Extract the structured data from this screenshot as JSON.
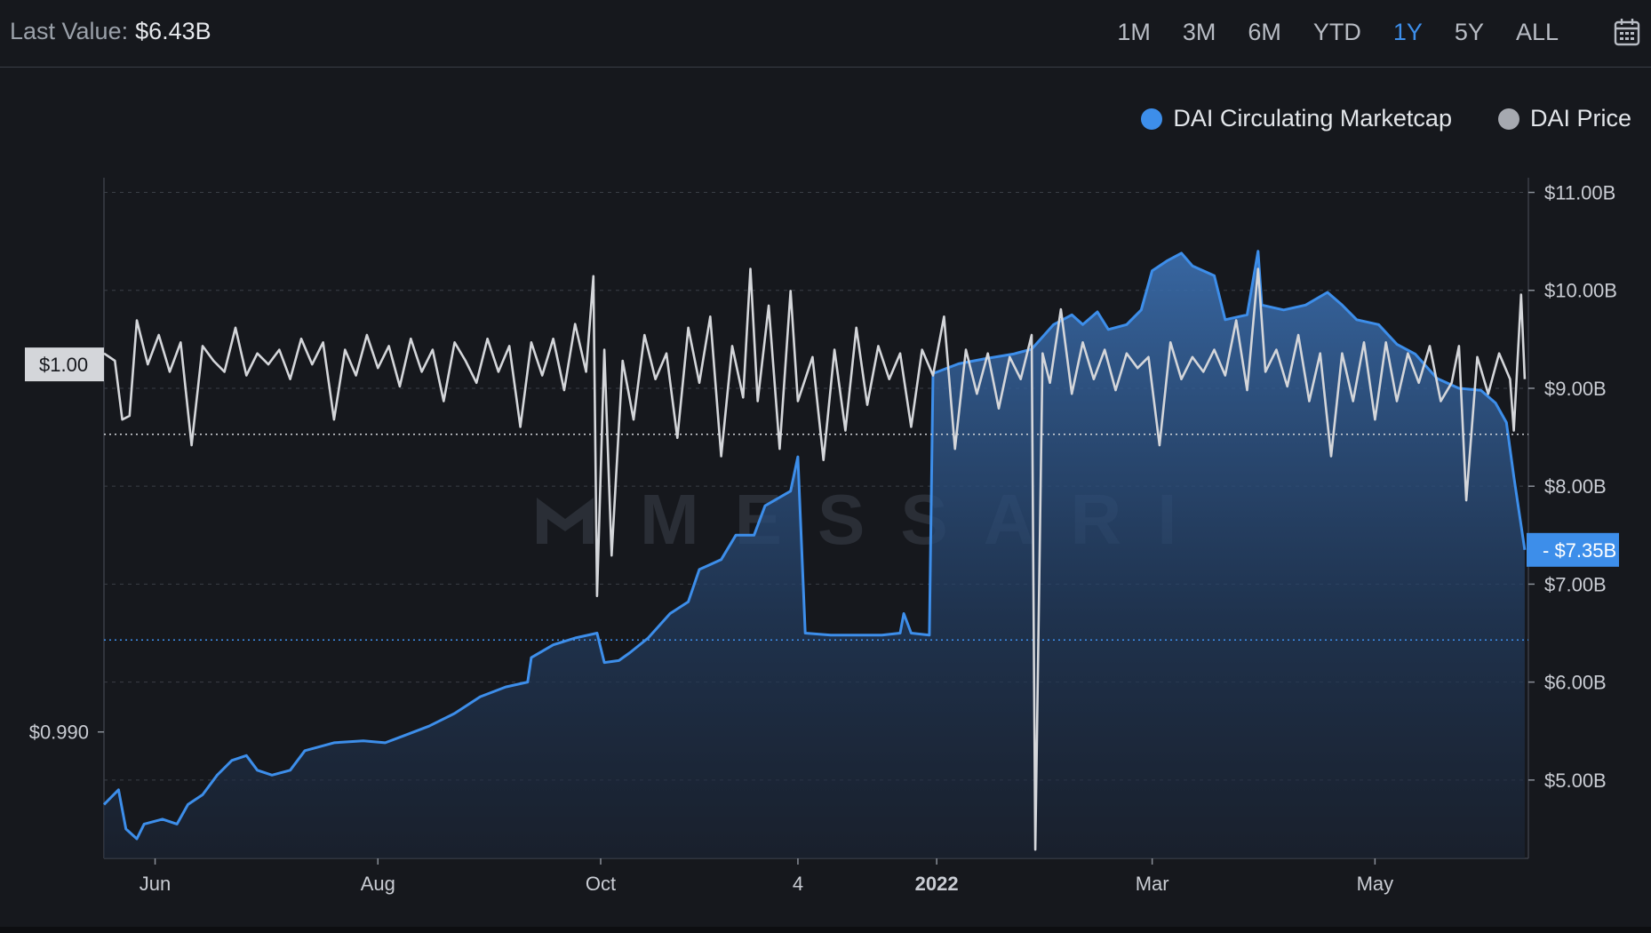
{
  "header": {
    "last_value_label": "Last Value:",
    "last_value": "$6.43B",
    "ranges": [
      {
        "label": "1M",
        "active": false
      },
      {
        "label": "3M",
        "active": false
      },
      {
        "label": "6M",
        "active": false
      },
      {
        "label": "YTD",
        "active": false
      },
      {
        "label": "1Y",
        "active": true
      },
      {
        "label": "5Y",
        "active": false
      },
      {
        "label": "ALL",
        "active": false
      }
    ],
    "calendar_icon": "calendar-icon"
  },
  "colors": {
    "background": "#16181d",
    "marketcap": "#3d8eea",
    "price": "#d4d6da",
    "grid": "#3a3e46",
    "active_range": "#3d8eea"
  },
  "watermark": "MESSARI",
  "chart_data": {
    "type": "line",
    "legend_placement": "top-right",
    "x_tick_labels": [
      "Jun",
      "Aug",
      "Oct",
      "4",
      "2022",
      "Mar",
      "May"
    ],
    "series": [
      {
        "name": "DAI Circulating Marketcap",
        "axis": "right",
        "style": "area",
        "color": "#3d8eea",
        "points": [
          [
            "2021-05-18",
            4.75
          ],
          [
            "2021-05-22",
            4.9
          ],
          [
            "2021-05-24",
            4.5
          ],
          [
            "2021-05-27",
            4.4
          ],
          [
            "2021-05-29",
            4.55
          ],
          [
            "2021-06-03",
            4.6
          ],
          [
            "2021-06-07",
            4.55
          ],
          [
            "2021-06-10",
            4.75
          ],
          [
            "2021-06-14",
            4.85
          ],
          [
            "2021-06-18",
            5.05
          ],
          [
            "2021-06-22",
            5.2
          ],
          [
            "2021-06-26",
            5.25
          ],
          [
            "2021-06-29",
            5.1
          ],
          [
            "2021-07-03",
            5.05
          ],
          [
            "2021-07-08",
            5.1
          ],
          [
            "2021-07-12",
            5.3
          ],
          [
            "2021-07-20",
            5.38
          ],
          [
            "2021-07-28",
            5.4
          ],
          [
            "2021-08-03",
            5.38
          ],
          [
            "2021-08-08",
            5.45
          ],
          [
            "2021-08-15",
            5.55
          ],
          [
            "2021-08-22",
            5.68
          ],
          [
            "2021-08-29",
            5.85
          ],
          [
            "2021-09-05",
            5.95
          ],
          [
            "2021-09-11",
            6.0
          ],
          [
            "2021-09-12",
            6.25
          ],
          [
            "2021-09-18",
            6.38
          ],
          [
            "2021-09-24",
            6.45
          ],
          [
            "2021-09-30",
            6.5
          ],
          [
            "2021-10-02",
            6.2
          ],
          [
            "2021-10-06",
            6.22
          ],
          [
            "2021-10-09",
            6.3
          ],
          [
            "2021-10-14",
            6.45
          ],
          [
            "2021-10-20",
            6.7
          ],
          [
            "2021-10-25",
            6.82
          ],
          [
            "2021-10-28",
            7.15
          ],
          [
            "2021-11-03",
            7.25
          ],
          [
            "2021-11-07",
            7.5
          ],
          [
            "2021-11-12",
            7.5
          ],
          [
            "2021-11-15",
            7.8
          ],
          [
            "2021-11-22",
            7.95
          ],
          [
            "2021-11-24",
            8.3
          ],
          [
            "2021-11-26",
            6.5
          ],
          [
            "2021-12-03",
            6.48
          ],
          [
            "2021-12-10",
            6.48
          ],
          [
            "2021-12-17",
            6.48
          ],
          [
            "2021-12-22",
            6.5
          ],
          [
            "2021-12-23",
            6.7
          ],
          [
            "2021-12-25",
            6.5
          ],
          [
            "2021-12-30",
            6.48
          ],
          [
            "2021-12-31",
            9.15
          ],
          [
            "2022-01-07",
            9.25
          ],
          [
            "2022-01-14",
            9.3
          ],
          [
            "2022-01-22",
            9.35
          ],
          [
            "2022-01-27",
            9.4
          ],
          [
            "2022-02-02",
            9.65
          ],
          [
            "2022-02-07",
            9.75
          ],
          [
            "2022-02-10",
            9.65
          ],
          [
            "2022-02-14",
            9.78
          ],
          [
            "2022-02-17",
            9.6
          ],
          [
            "2022-02-22",
            9.65
          ],
          [
            "2022-02-26",
            9.8
          ],
          [
            "2022-03-01",
            10.2
          ],
          [
            "2022-03-05",
            10.3
          ],
          [
            "2022-03-09",
            10.38
          ],
          [
            "2022-03-12",
            10.25
          ],
          [
            "2022-03-18",
            10.15
          ],
          [
            "2022-03-21",
            9.7
          ],
          [
            "2022-03-27",
            9.75
          ],
          [
            "2022-03-30",
            10.4
          ],
          [
            "2022-03-31",
            9.85
          ],
          [
            "2022-04-06",
            9.8
          ],
          [
            "2022-04-12",
            9.85
          ],
          [
            "2022-04-18",
            9.98
          ],
          [
            "2022-04-22",
            9.85
          ],
          [
            "2022-04-26",
            9.7
          ],
          [
            "2022-05-02",
            9.65
          ],
          [
            "2022-05-07",
            9.45
          ],
          [
            "2022-05-12",
            9.35
          ],
          [
            "2022-05-18",
            9.1
          ],
          [
            "2022-05-24",
            9.0
          ],
          [
            "2022-05-30",
            8.98
          ],
          [
            "2022-06-03",
            8.85
          ],
          [
            "2022-06-06",
            8.65
          ],
          [
            "2022-06-08",
            8.1
          ],
          [
            "2022-06-11",
            7.35
          ]
        ]
      },
      {
        "name": "DAI Price",
        "axis": "left",
        "style": "line",
        "color": "#d4d6da",
        "points": [
          [
            "2021-05-18",
            1.0003
          ],
          [
            "2021-05-21",
            1.0001
          ],
          [
            "2021-05-23",
            0.9985
          ],
          [
            "2021-05-25",
            0.9986
          ],
          [
            "2021-05-27",
            1.0012
          ],
          [
            "2021-05-30",
            1.0
          ],
          [
            "2021-06-02",
            1.0008
          ],
          [
            "2021-06-05",
            0.9998
          ],
          [
            "2021-06-08",
            1.0006
          ],
          [
            "2021-06-11",
            0.9978
          ],
          [
            "2021-06-14",
            1.0005
          ],
          [
            "2021-06-17",
            1.0001
          ],
          [
            "2021-06-20",
            0.9998
          ],
          [
            "2021-06-23",
            1.001
          ],
          [
            "2021-06-26",
            0.9997
          ],
          [
            "2021-06-29",
            1.0003
          ],
          [
            "2021-07-02",
            1.0
          ],
          [
            "2021-07-05",
            1.0004
          ],
          [
            "2021-07-08",
            0.9996
          ],
          [
            "2021-07-11",
            1.0007
          ],
          [
            "2021-07-14",
            1.0
          ],
          [
            "2021-07-17",
            1.0006
          ],
          [
            "2021-07-20",
            0.9985
          ],
          [
            "2021-07-23",
            1.0004
          ],
          [
            "2021-07-26",
            0.9997
          ],
          [
            "2021-07-29",
            1.0008
          ],
          [
            "2021-08-01",
            0.9999
          ],
          [
            "2021-08-04",
            1.0005
          ],
          [
            "2021-08-07",
            0.9994
          ],
          [
            "2021-08-10",
            1.0007
          ],
          [
            "2021-08-13",
            0.9998
          ],
          [
            "2021-08-16",
            1.0004
          ],
          [
            "2021-08-19",
            0.999
          ],
          [
            "2021-08-22",
            1.0006
          ],
          [
            "2021-08-25",
            1.0001
          ],
          [
            "2021-08-28",
            0.9995
          ],
          [
            "2021-08-31",
            1.0007
          ],
          [
            "2021-09-03",
            0.9998
          ],
          [
            "2021-09-06",
            1.0005
          ],
          [
            "2021-09-09",
            0.9983
          ],
          [
            "2021-09-12",
            1.0006
          ],
          [
            "2021-09-15",
            0.9997
          ],
          [
            "2021-09-18",
            1.0007
          ],
          [
            "2021-09-21",
            0.9993
          ],
          [
            "2021-09-24",
            1.0011
          ],
          [
            "2021-09-27",
            0.9998
          ],
          [
            "2021-09-29",
            1.0024
          ],
          [
            "2021-09-30",
            0.9937
          ],
          [
            "2021-10-02",
            1.0004
          ],
          [
            "2021-10-04",
            0.9948
          ],
          [
            "2021-10-07",
            1.0001
          ],
          [
            "2021-10-10",
            0.9985
          ],
          [
            "2021-10-13",
            1.0008
          ],
          [
            "2021-10-16",
            0.9996
          ],
          [
            "2021-10-19",
            1.0003
          ],
          [
            "2021-10-22",
            0.998
          ],
          [
            "2021-10-25",
            1.001
          ],
          [
            "2021-10-28",
            0.9995
          ],
          [
            "2021-10-31",
            1.0013
          ],
          [
            "2021-11-03",
            0.9975
          ],
          [
            "2021-11-06",
            1.0005
          ],
          [
            "2021-11-09",
            0.9991
          ],
          [
            "2021-11-11",
            1.0026
          ],
          [
            "2021-11-13",
            0.999
          ],
          [
            "2021-11-16",
            1.0016
          ],
          [
            "2021-11-19",
            0.9977
          ],
          [
            "2021-11-22",
            1.002
          ],
          [
            "2021-11-24",
            0.999
          ],
          [
            "2021-11-28",
            1.0002
          ],
          [
            "2021-12-01",
            0.9974
          ],
          [
            "2021-12-04",
            1.0004
          ],
          [
            "2021-12-07",
            0.9982
          ],
          [
            "2021-12-10",
            1.001
          ],
          [
            "2021-12-13",
            0.9989
          ],
          [
            "2021-12-16",
            1.0005
          ],
          [
            "2021-12-19",
            0.9996
          ],
          [
            "2021-12-22",
            1.0003
          ],
          [
            "2021-12-25",
            0.9983
          ],
          [
            "2021-12-28",
            1.0004
          ],
          [
            "2021-12-31",
            0.9997
          ],
          [
            "2022-01-03",
            1.0013
          ],
          [
            "2022-01-06",
            0.9977
          ],
          [
            "2022-01-09",
            1.0004
          ],
          [
            "2022-01-12",
            0.9992
          ],
          [
            "2022-01-15",
            1.0003
          ],
          [
            "2022-01-18",
            0.9988
          ],
          [
            "2022-01-21",
            1.0002
          ],
          [
            "2022-01-24",
            0.9996
          ],
          [
            "2022-01-27",
            1.0008
          ],
          [
            "2022-01-28",
            0.9868
          ],
          [
            "2022-01-30",
            1.0003
          ],
          [
            "2022-02-01",
            0.9995
          ],
          [
            "2022-02-04",
            1.0015
          ],
          [
            "2022-02-07",
            0.9992
          ],
          [
            "2022-02-10",
            1.0006
          ],
          [
            "2022-02-13",
            0.9996
          ],
          [
            "2022-02-16",
            1.0004
          ],
          [
            "2022-02-19",
            0.9993
          ],
          [
            "2022-02-22",
            1.0003
          ],
          [
            "2022-02-25",
            0.9999
          ],
          [
            "2022-02-28",
            1.0002
          ],
          [
            "2022-03-03",
            0.9978
          ],
          [
            "2022-03-06",
            1.0006
          ],
          [
            "2022-03-09",
            0.9996
          ],
          [
            "2022-03-12",
            1.0002
          ],
          [
            "2022-03-15",
            0.9998
          ],
          [
            "2022-03-18",
            1.0004
          ],
          [
            "2022-03-21",
            0.9997
          ],
          [
            "2022-03-24",
            1.0012
          ],
          [
            "2022-03-27",
            0.9993
          ],
          [
            "2022-03-30",
            1.0026
          ],
          [
            "2022-04-01",
            0.9998
          ],
          [
            "2022-04-04",
            1.0004
          ],
          [
            "2022-04-07",
            0.9994
          ],
          [
            "2022-04-10",
            1.0008
          ],
          [
            "2022-04-13",
            0.999
          ],
          [
            "2022-04-16",
            1.0003
          ],
          [
            "2022-04-19",
            0.9975
          ],
          [
            "2022-04-22",
            1.0003
          ],
          [
            "2022-04-25",
            0.999
          ],
          [
            "2022-04-28",
            1.0006
          ],
          [
            "2022-05-01",
            0.9985
          ],
          [
            "2022-05-04",
            1.0006
          ],
          [
            "2022-05-07",
            0.999
          ],
          [
            "2022-05-10",
            1.0003
          ],
          [
            "2022-05-13",
            0.9995
          ],
          [
            "2022-05-16",
            1.0005
          ],
          [
            "2022-05-19",
            0.999
          ],
          [
            "2022-05-22",
            0.9995
          ],
          [
            "2022-05-24",
            1.0005
          ],
          [
            "2022-05-26",
            0.9963
          ],
          [
            "2022-05-29",
            1.0002
          ],
          [
            "2022-06-01",
            0.9992
          ],
          [
            "2022-06-04",
            1.0003
          ],
          [
            "2022-06-07",
            0.9996
          ],
          [
            "2022-06-08",
            0.9982
          ],
          [
            "2022-06-10",
            1.0019
          ],
          [
            "2022-06-11",
            0.9996
          ]
        ]
      }
    ],
    "right_axis": {
      "tick_labels": [
        "$11.00B",
        "$10.00B",
        "$9.00B",
        "$8.00B",
        "$7.00B",
        "$6.00B",
        "$5.00B"
      ],
      "ticks": [
        11,
        10,
        9,
        8,
        7,
        6,
        5
      ],
      "range": [
        4.2,
        11.15
      ],
      "current_value_label": "$7.35B",
      "current_value": 7.35,
      "last_value_line": 6.43
    },
    "left_axis": {
      "tick_labels": [
        "$0.990"
      ],
      "ticks": [
        0.99
      ],
      "range": [
        0.98656,
        1.00508
      ],
      "current_value_label": "$1.00",
      "current_value": 1.0,
      "reference_line": 0.9981
    },
    "x_range": [
      "2021-05-18",
      "2022-06-12"
    ],
    "grid": true
  }
}
